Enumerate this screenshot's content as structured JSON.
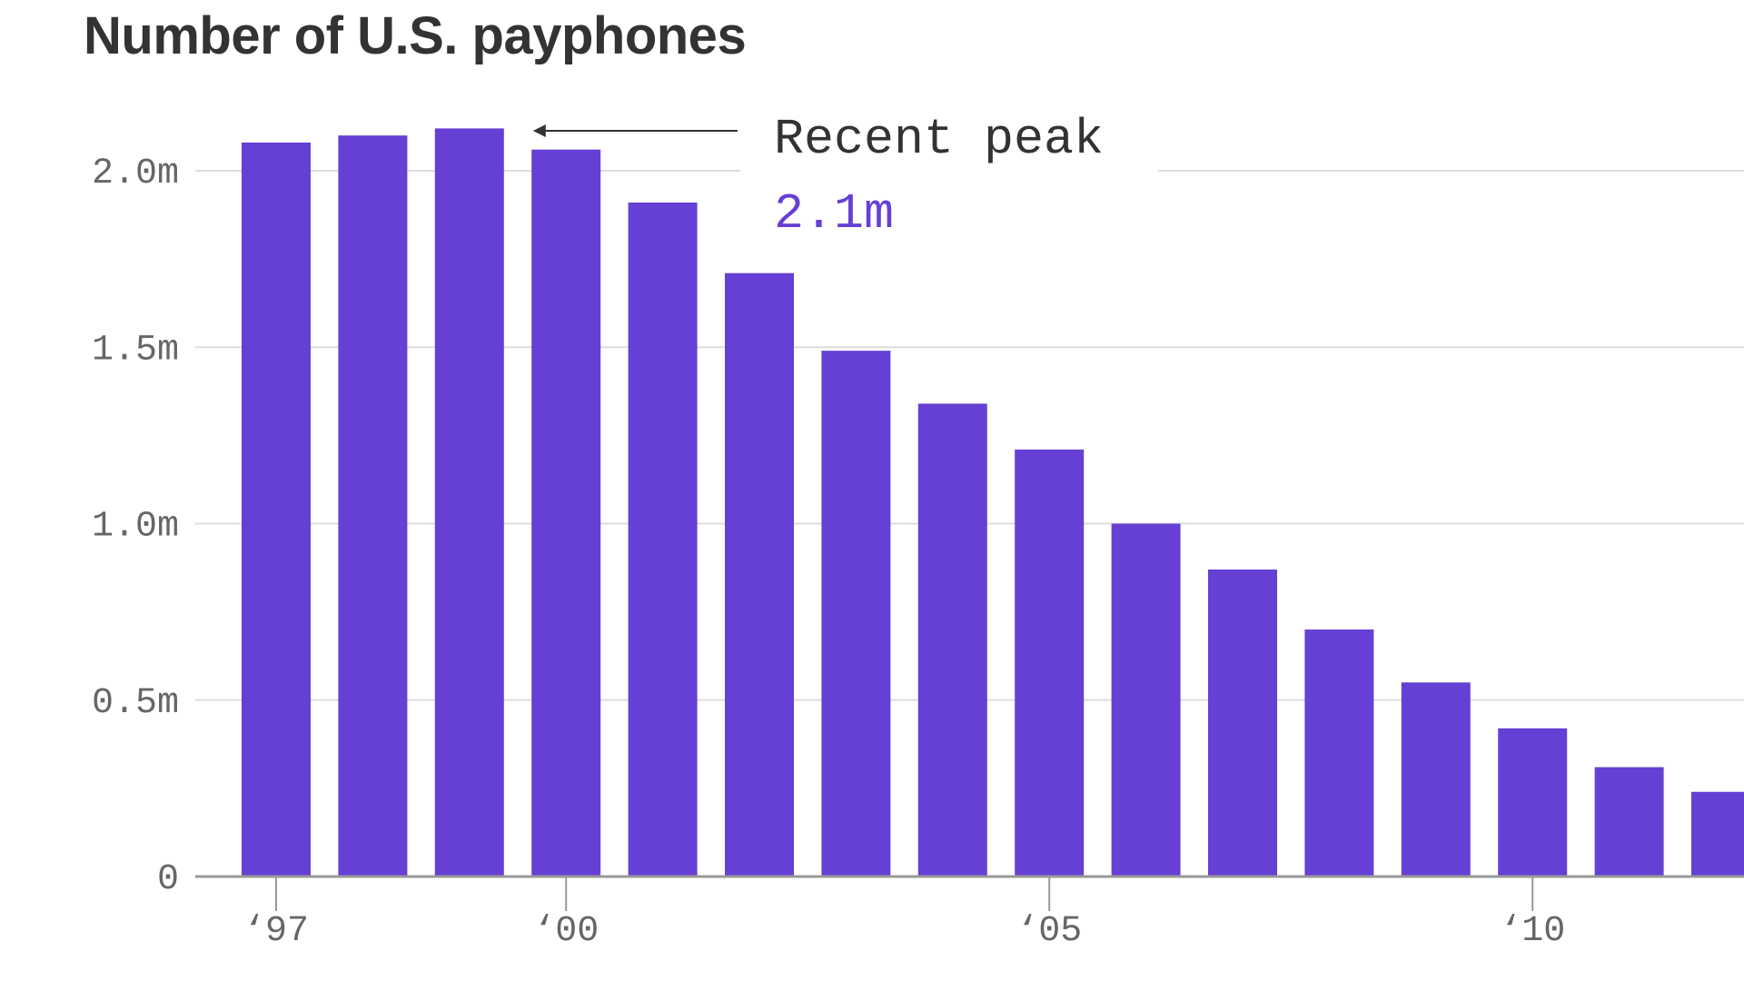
{
  "chart_data": {
    "type": "bar",
    "title": "Number of U.S. payphones",
    "xlabel": "",
    "ylabel": "",
    "categories": [
      "1997",
      "1998",
      "1999",
      "2000",
      "2001",
      "2002",
      "2003",
      "2004",
      "2005",
      "2006",
      "2007",
      "2008",
      "2009",
      "2010",
      "2011",
      "2012"
    ],
    "values": [
      2.08,
      2.1,
      2.12,
      2.06,
      1.91,
      1.71,
      1.49,
      1.34,
      1.21,
      1.0,
      0.87,
      0.7,
      0.55,
      0.42,
      0.31,
      0.24
    ],
    "value_unit": "millions",
    "ylim": [
      0,
      2.1
    ],
    "y_ticks": [
      "0",
      "0.5m",
      "1.0m",
      "1.5m",
      "2.0m"
    ],
    "y_tick_values": [
      0,
      0.5,
      1.0,
      1.5,
      2.0
    ],
    "x_ticks": [
      "‘97",
      "‘00",
      "‘05",
      "‘10"
    ],
    "x_tick_categories": [
      "1997",
      "2000",
      "2005",
      "2010"
    ],
    "grid": true,
    "annotation": {
      "label": "Recent peak",
      "value": "2.1m",
      "target_category": "1999"
    },
    "colors": {
      "bar": "#663FD4",
      "annotation_value": "#663FD4",
      "grid": "#dddddd",
      "axis": "#999999"
    }
  }
}
